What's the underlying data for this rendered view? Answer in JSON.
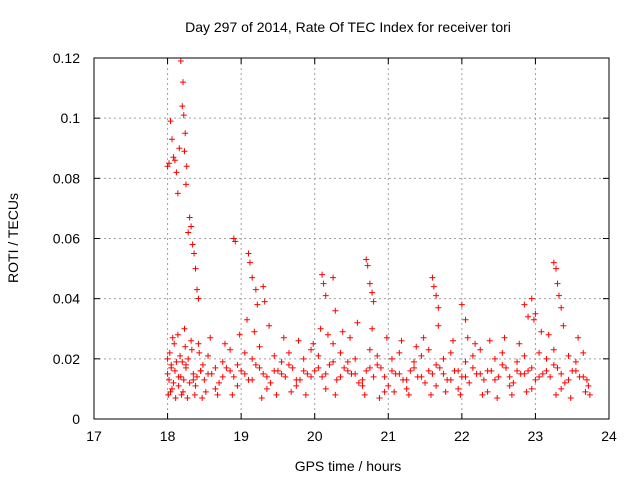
{
  "chart_data": {
    "type": "scatter",
    "title": "Day 297 of 2014, Rate Of TEC Index for receiver tori",
    "xlabel": "GPS time / hours",
    "ylabel": "ROTI / TECUs",
    "xlim": [
      17,
      24
    ],
    "ylim": [
      0,
      0.12
    ],
    "grid": true,
    "marker": "+",
    "series_color": "#ff0000",
    "x_ticks": [
      17,
      18,
      19,
      20,
      21,
      22,
      23,
      24
    ],
    "x_tick_labels": [
      "17",
      "18",
      "19",
      "20",
      "21",
      "22",
      "23",
      "24"
    ],
    "y_ticks": [
      0,
      0.02,
      0.04,
      0.06,
      0.08,
      0.1,
      0.12
    ],
    "y_tick_labels": [
      "0",
      "0.02",
      "0.04",
      "0.06",
      "0.08",
      "0.1",
      "0.12"
    ],
    "series": [
      {
        "name": "ROTI",
        "x": [
          18.0,
          18.02,
          18.05,
          18.08,
          18.1,
          18.15,
          18.18,
          18.2,
          18.22,
          18.25,
          18.3,
          18.35,
          18.4,
          18.45,
          18.5,
          18.6,
          18.7,
          18.8,
          18.9,
          19.0,
          19.1,
          19.2,
          19.3,
          19.4,
          19.5,
          19.6,
          19.7,
          19.8,
          19.9,
          20.0,
          20.1,
          20.2,
          20.3,
          20.4,
          20.5,
          20.6,
          20.7,
          20.8,
          20.9,
          21.0,
          21.1,
          21.2,
          21.3,
          21.4,
          21.5,
          21.6,
          21.7,
          21.8,
          21.9,
          22.0,
          22.1,
          22.2,
          22.3,
          22.4,
          22.5,
          22.6,
          22.7,
          22.8,
          22.9,
          23.0,
          23.1,
          23.2,
          23.3,
          23.4,
          23.5,
          23.6,
          23.7,
          18.0,
          18.03,
          18.06,
          18.09,
          18.12,
          18.17,
          18.21,
          18.24,
          18.28,
          18.33,
          18.38,
          18.43,
          18.48,
          18.55,
          18.65,
          18.75,
          18.85,
          18.95,
          19.05,
          19.15,
          19.25,
          19.35,
          19.45,
          19.55,
          19.65,
          19.75,
          19.85,
          19.95,
          20.05,
          20.15,
          20.25,
          20.35,
          20.45,
          20.55,
          20.65,
          20.75,
          20.85,
          20.95,
          21.05,
          21.15,
          21.25,
          21.35,
          21.45,
          21.55,
          21.65,
          21.75,
          21.85,
          21.95,
          22.05,
          22.15,
          22.25,
          22.35,
          22.45,
          22.55,
          22.65,
          22.75,
          22.85,
          22.95,
          23.05,
          23.15,
          23.25,
          23.35,
          23.45,
          23.55,
          23.65,
          23.72,
          18.01,
          18.04,
          18.07,
          18.11,
          18.14,
          18.19,
          18.23,
          18.27,
          18.32,
          18.37,
          18.42,
          18.47,
          18.52,
          18.58,
          18.68,
          18.78,
          18.88,
          18.98,
          19.08,
          19.18,
          19.28,
          19.38,
          19.48,
          19.58,
          19.68,
          19.78,
          19.88,
          19.98,
          20.08,
          20.18,
          20.28,
          20.38,
          20.48,
          20.58,
          20.68,
          20.78,
          20.88,
          20.98,
          21.08,
          21.18,
          21.28,
          21.38,
          21.48,
          21.58,
          21.68,
          21.78,
          21.88,
          21.98,
          22.08,
          22.18,
          22.28,
          22.38,
          22.48,
          22.58,
          22.68,
          22.78,
          22.88,
          22.98,
          23.08,
          23.18,
          23.28,
          23.38,
          23.48,
          23.58,
          23.68,
          23.74,
          18.0,
          18.02,
          18.04,
          18.06,
          18.08,
          18.1,
          18.12,
          18.14,
          18.16,
          18.18,
          18.2,
          18.21,
          18.22,
          18.23,
          18.24,
          18.25,
          18.26,
          18.28,
          18.3,
          18.32,
          18.34,
          18.36,
          18.38,
          18.4,
          18.42,
          18.9,
          18.92,
          19.1,
          19.12,
          19.15,
          19.2,
          19.22,
          19.3,
          19.32,
          20.1,
          20.12,
          20.15,
          20.25,
          20.28,
          20.7,
          20.72,
          20.75,
          20.78,
          20.8,
          21.6,
          21.62,
          21.65,
          21.68,
          22.0,
          22.05,
          22.85,
          22.9,
          22.95,
          23.0,
          23.25,
          23.28,
          23.3,
          23.32,
          23.35,
          18.05,
          18.15,
          18.25,
          18.35,
          18.45,
          18.55,
          18.65,
          18.75,
          18.85,
          18.95,
          19.05,
          19.15,
          19.25,
          19.35,
          19.45,
          19.55,
          19.65,
          19.75,
          19.85,
          19.95,
          20.05,
          20.15,
          20.25,
          20.35,
          20.45,
          20.55,
          20.65,
          20.75,
          20.85,
          20.95,
          21.05,
          21.15,
          21.25,
          21.35,
          21.45,
          21.55,
          21.65,
          21.75,
          21.85,
          21.95,
          22.05,
          22.15,
          22.25,
          22.35,
          22.45,
          22.55,
          22.65,
          22.75,
          22.85,
          22.95,
          23.05,
          23.15,
          23.25,
          23.35,
          23.45,
          23.55,
          23.65
        ],
        "y": [
          0.015,
          0.013,
          0.018,
          0.012,
          0.016,
          0.011,
          0.014,
          0.019,
          0.013,
          0.017,
          0.012,
          0.015,
          0.014,
          0.016,
          0.013,
          0.015,
          0.012,
          0.017,
          0.014,
          0.016,
          0.013,
          0.018,
          0.015,
          0.012,
          0.016,
          0.014,
          0.017,
          0.013,
          0.015,
          0.016,
          0.014,
          0.018,
          0.013,
          0.017,
          0.015,
          0.012,
          0.016,
          0.014,
          0.017,
          0.011,
          0.015,
          0.013,
          0.016,
          0.014,
          0.012,
          0.015,
          0.017,
          0.013,
          0.016,
          0.014,
          0.012,
          0.015,
          0.013,
          0.016,
          0.014,
          0.017,
          0.012,
          0.015,
          0.016,
          0.013,
          0.015,
          0.014,
          0.017,
          0.012,
          0.016,
          0.014,
          0.013,
          0.02,
          0.022,
          0.01,
          0.025,
          0.019,
          0.021,
          0.009,
          0.024,
          0.02,
          0.023,
          0.011,
          0.022,
          0.018,
          0.021,
          0.01,
          0.019,
          0.023,
          0.011,
          0.022,
          0.02,
          0.024,
          0.01,
          0.021,
          0.019,
          0.022,
          0.011,
          0.02,
          0.023,
          0.021,
          0.01,
          0.025,
          0.022,
          0.019,
          0.02,
          0.011,
          0.023,
          0.021,
          0.009,
          0.02,
          0.022,
          0.01,
          0.019,
          0.021,
          0.023,
          0.011,
          0.02,
          0.022,
          0.01,
          0.019,
          0.021,
          0.023,
          0.009,
          0.02,
          0.022,
          0.011,
          0.019,
          0.021,
          0.01,
          0.022,
          0.02,
          0.023,
          0.01,
          0.021,
          0.019,
          0.022,
          0.011,
          0.008,
          0.009,
          0.027,
          0.007,
          0.028,
          0.008,
          0.03,
          0.007,
          0.026,
          0.008,
          0.025,
          0.007,
          0.009,
          0.027,
          0.008,
          0.025,
          0.008,
          0.028,
          0.033,
          0.029,
          0.007,
          0.031,
          0.008,
          0.027,
          0.009,
          0.026,
          0.008,
          0.025,
          0.03,
          0.028,
          0.008,
          0.029,
          0.027,
          0.032,
          0.008,
          0.03,
          0.007,
          0.027,
          0.009,
          0.026,
          0.008,
          0.024,
          0.027,
          0.008,
          0.031,
          0.009,
          0.026,
          0.008,
          0.027,
          0.025,
          0.008,
          0.026,
          0.007,
          0.027,
          0.008,
          0.025,
          0.009,
          0.033,
          0.029,
          0.028,
          0.008,
          0.031,
          0.007,
          0.027,
          0.009,
          0.008,
          0.084,
          0.085,
          0.099,
          0.093,
          0.087,
          0.086,
          0.082,
          0.075,
          0.09,
          0.119,
          0.104,
          0.112,
          0.101,
          0.089,
          0.095,
          0.078,
          0.084,
          0.062,
          0.067,
          0.064,
          0.058,
          0.055,
          0.05,
          0.043,
          0.04,
          0.06,
          0.059,
          0.055,
          0.052,
          0.047,
          0.043,
          0.038,
          0.044,
          0.039,
          0.048,
          0.045,
          0.041,
          0.047,
          0.036,
          0.053,
          0.051,
          0.045,
          0.042,
          0.039,
          0.047,
          0.044,
          0.041,
          0.037,
          0.038,
          0.033,
          0.038,
          0.034,
          0.04,
          0.035,
          0.052,
          0.05,
          0.045,
          0.041,
          0.037,
          0.017,
          0.014,
          0.018,
          0.013,
          0.016,
          0.015,
          0.017,
          0.014,
          0.016,
          0.018,
          0.015,
          0.013,
          0.017,
          0.014,
          0.016,
          0.015,
          0.018,
          0.013,
          0.016,
          0.014,
          0.017,
          0.015,
          0.019,
          0.014,
          0.016,
          0.015,
          0.013,
          0.017,
          0.018,
          0.014,
          0.016,
          0.015,
          0.013,
          0.017,
          0.014,
          0.016,
          0.018,
          0.015,
          0.013,
          0.016,
          0.014,
          0.017,
          0.015,
          0.016,
          0.013,
          0.018,
          0.014,
          0.016,
          0.015,
          0.017,
          0.014,
          0.016,
          0.018,
          0.015,
          0.013,
          0.016,
          0.014
        ]
      }
    ]
  }
}
